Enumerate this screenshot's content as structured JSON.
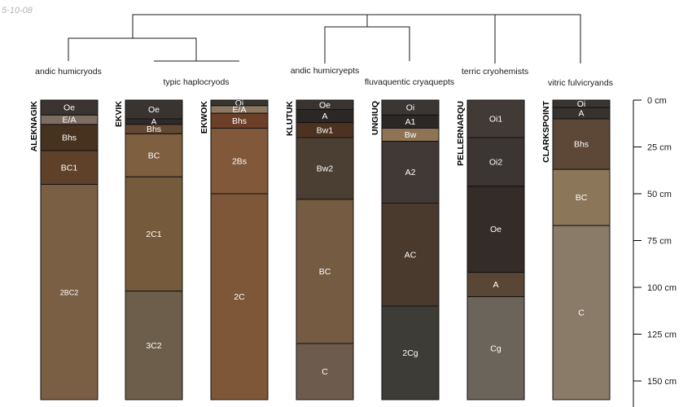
{
  "stamp_text": "5-10-08",
  "chart_data": {
    "type": "soil-profile-sketch",
    "title": "",
    "depth_units": "cm",
    "depth_axis": {
      "ticks": [
        0,
        25,
        50,
        75,
        100,
        125,
        150
      ],
      "tick_labels": [
        "0 cm",
        "25 cm",
        "50 cm",
        "75 cm",
        "100 cm",
        "125 cm",
        "150 cm"
      ],
      "range": [
        0,
        160
      ]
    },
    "dendrogram": {
      "leaf_order": [
        "ALEKNAGIK",
        "EKVIK",
        "EKWOK",
        "KLUTUK",
        "UNGIUQ",
        "PELLERNARQU",
        "CLARKSPOINT"
      ],
      "cluster_labels": [
        {
          "text": "andic humicryods",
          "under": "ALEKNAGIK"
        },
        {
          "text": "typic haplocryods",
          "under": "EKVIK-EKWOK"
        },
        {
          "text": "andic humicryepts",
          "under": "KLUTUK"
        },
        {
          "text": "fluvaquentic cryaquepts",
          "under": "UNGIUQ"
        },
        {
          "text": "terric cryohemists",
          "under": "PELLERNARQU"
        },
        {
          "text": "vitric fulvicryands",
          "under": "CLARKSPOINT"
        }
      ]
    },
    "profiles": [
      {
        "name": "ALEKNAGIK",
        "horizons": [
          {
            "name": "Oe",
            "top": 0,
            "bottom": 8,
            "color": "#3b3430"
          },
          {
            "name": "E/A",
            "top": 8,
            "bottom": 13,
            "color": "#7d6e61"
          },
          {
            "name": "Bhs",
            "top": 13,
            "bottom": 27,
            "color": "#47311f"
          },
          {
            "name": "BC1",
            "top": 27,
            "bottom": 45,
            "color": "#5e4128"
          },
          {
            "name": "2BC2",
            "top": 45,
            "bottom": 160,
            "color": "#7b5f44"
          }
        ]
      },
      {
        "name": "EKVIK",
        "horizons": [
          {
            "name": "Oe",
            "top": 0,
            "bottom": 10,
            "color": "#3a3431"
          },
          {
            "name": "A",
            "top": 10,
            "bottom": 13,
            "color": "#2e2a27"
          },
          {
            "name": "Bhs",
            "top": 13,
            "bottom": 18,
            "color": "#634832"
          },
          {
            "name": "BC",
            "top": 18,
            "bottom": 41,
            "color": "#7e5f40"
          },
          {
            "name": "2C1",
            "top": 41,
            "bottom": 102,
            "color": "#765a3c"
          },
          {
            "name": "3C2",
            "top": 102,
            "bottom": 160,
            "color": "#6c5e4a"
          }
        ]
      },
      {
        "name": "EKWOK",
        "horizons": [
          {
            "name": "Oi",
            "top": 0,
            "bottom": 3,
            "color": "#3a3431"
          },
          {
            "name": "E/A",
            "top": 3,
            "bottom": 7,
            "color": "#8c7763"
          },
          {
            "name": "Bhs",
            "top": 7,
            "bottom": 15,
            "color": "#6b3f28"
          },
          {
            "name": "2Bs",
            "top": 15,
            "bottom": 50,
            "color": "#81583a"
          },
          {
            "name": "2C",
            "top": 50,
            "bottom": 160,
            "color": "#7e5638"
          }
        ]
      },
      {
        "name": "KLUTUK",
        "horizons": [
          {
            "name": "Oe",
            "top": 0,
            "bottom": 5,
            "color": "#3a3431"
          },
          {
            "name": "A",
            "top": 5,
            "bottom": 12,
            "color": "#2b2725"
          },
          {
            "name": "Bw1",
            "top": 12,
            "bottom": 20,
            "color": "#4d3222"
          },
          {
            "name": "Bw2",
            "top": 20,
            "bottom": 53,
            "color": "#4b3f33"
          },
          {
            "name": "BC",
            "top": 53,
            "bottom": 130,
            "color": "#745b42"
          },
          {
            "name": "C",
            "top": 130,
            "bottom": 160,
            "color": "#6d5c4e"
          }
        ]
      },
      {
        "name": "UNGIUQ",
        "horizons": [
          {
            "name": "Oi",
            "top": 0,
            "bottom": 8,
            "color": "#3b3533"
          },
          {
            "name": "A1",
            "top": 8,
            "bottom": 15,
            "color": "#2c2826"
          },
          {
            "name": "Bw",
            "top": 15,
            "bottom": 22,
            "color": "#8e7355"
          },
          {
            "name": "A2",
            "top": 22,
            "bottom": 55,
            "color": "#413936"
          },
          {
            "name": "AC",
            "top": 55,
            "bottom": 110,
            "color": "#4a3a2d"
          },
          {
            "name": "2Cg",
            "top": 110,
            "bottom": 160,
            "color": "#3d3c36"
          }
        ]
      },
      {
        "name": "PELLERNARQU",
        "horizons": [
          {
            "name": "Oi1",
            "top": 0,
            "bottom": 20,
            "color": "#413a37"
          },
          {
            "name": "Oi2",
            "top": 20,
            "bottom": 46,
            "color": "#3b3533"
          },
          {
            "name": "Oe",
            "top": 46,
            "bottom": 92,
            "color": "#332c29"
          },
          {
            "name": "A",
            "top": 92,
            "bottom": 105,
            "color": "#5a4634"
          },
          {
            "name": "Cg",
            "top": 105,
            "bottom": 160,
            "color": "#6b645a"
          }
        ]
      },
      {
        "name": "CLARKSPOINT",
        "horizons": [
          {
            "name": "Oi",
            "top": 0,
            "bottom": 4,
            "color": "#3a3431"
          },
          {
            "name": "A",
            "top": 4,
            "bottom": 10,
            "color": "#38322f"
          },
          {
            "name": "Bhs",
            "top": 10,
            "bottom": 37,
            "color": "#5d4737"
          },
          {
            "name": "BC",
            "top": 37,
            "bottom": 67,
            "color": "#8c7659"
          },
          {
            "name": "C",
            "top": 67,
            "bottom": 160,
            "color": "#8a7b69"
          }
        ]
      }
    ]
  }
}
